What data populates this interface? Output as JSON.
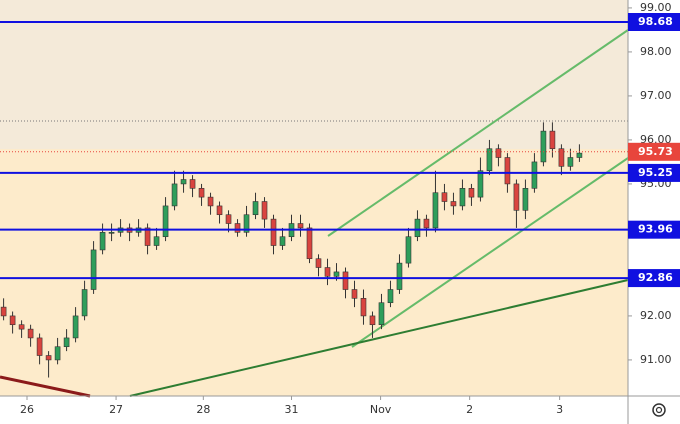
{
  "chart_data": {
    "type": "candlestick",
    "open": [
      92.2,
      92.0,
      91.8,
      91.7,
      91.5,
      91.1,
      91.0,
      91.3,
      91.5,
      92.0,
      92.6,
      93.5,
      93.9,
      93.9,
      94.0,
      93.9,
      94.0,
      93.6,
      93.8,
      94.5,
      95.0,
      95.1,
      94.9,
      94.7,
      94.5,
      94.3,
      94.1,
      93.9,
      94.3,
      94.6,
      94.2,
      93.6,
      93.8,
      94.1,
      94.0,
      93.3,
      93.1,
      92.9,
      93.0,
      92.6,
      92.4,
      92.0,
      91.8,
      92.3,
      92.6,
      93.2,
      93.8,
      94.2,
      94.0,
      94.8,
      94.6,
      94.5,
      94.9,
      94.7,
      95.3,
      95.8,
      95.6,
      95.0,
      94.4,
      94.9,
      95.5,
      96.2,
      95.8,
      95.4,
      95.6
    ],
    "high": [
      92.4,
      92.1,
      91.9,
      91.8,
      91.6,
      91.2,
      91.5,
      91.7,
      92.2,
      92.8,
      93.7,
      94.1,
      94.1,
      94.2,
      94.1,
      94.2,
      94.1,
      94.0,
      94.7,
      95.3,
      95.3,
      95.2,
      95.0,
      94.8,
      94.6,
      94.4,
      94.2,
      94.5,
      94.8,
      94.7,
      94.3,
      94.0,
      94.3,
      94.3,
      94.1,
      93.4,
      93.3,
      93.2,
      93.1,
      92.8,
      92.6,
      92.1,
      92.5,
      92.8,
      93.4,
      94.0,
      94.4,
      94.3,
      95.3,
      95.0,
      94.8,
      95.1,
      95.0,
      95.6,
      96.0,
      95.9,
      95.7,
      95.1,
      95.1,
      95.7,
      96.4,
      96.4,
      95.9,
      95.8,
      95.9
    ],
    "low": [
      91.9,
      91.6,
      91.5,
      91.3,
      90.9,
      90.6,
      90.9,
      91.2,
      91.4,
      91.9,
      92.5,
      93.4,
      93.7,
      93.8,
      93.7,
      93.8,
      93.4,
      93.5,
      93.7,
      94.4,
      94.8,
      94.7,
      94.5,
      94.3,
      94.1,
      93.9,
      93.8,
      93.8,
      94.2,
      94.0,
      93.4,
      93.5,
      93.7,
      93.8,
      93.2,
      92.9,
      92.7,
      92.8,
      92.4,
      92.2,
      91.8,
      91.5,
      91.7,
      92.2,
      92.5,
      93.1,
      93.7,
      93.8,
      93.9,
      94.4,
      94.3,
      94.4,
      94.5,
      94.6,
      95.2,
      95.4,
      94.8,
      94.0,
      94.2,
      94.8,
      95.4,
      95.6,
      95.2,
      95.3,
      95.5
    ],
    "close": [
      92.0,
      91.8,
      91.7,
      91.5,
      91.1,
      91.0,
      91.3,
      91.5,
      92.0,
      92.6,
      93.5,
      93.9,
      93.9,
      94.0,
      93.9,
      94.0,
      93.6,
      93.8,
      94.5,
      95.0,
      95.1,
      94.9,
      94.7,
      94.5,
      94.3,
      94.1,
      93.9,
      94.3,
      94.6,
      94.2,
      93.6,
      93.8,
      94.1,
      94.0,
      93.3,
      93.1,
      92.9,
      93.0,
      92.6,
      92.4,
      92.0,
      91.8,
      92.3,
      92.6,
      93.2,
      93.8,
      94.2,
      94.0,
      94.8,
      94.6,
      94.5,
      94.9,
      94.7,
      95.3,
      95.8,
      95.6,
      95.0,
      94.4,
      94.9,
      95.5,
      96.2,
      95.8,
      95.4,
      95.6,
      95.7
    ],
    "up_color": "#2e9e5b",
    "down_color": "#d9443f",
    "xlim": [
      -0.4,
      69.4
    ],
    "xticks": [
      {
        "value": 2.6,
        "label": "26"
      },
      {
        "value": 12.5,
        "label": "27"
      },
      {
        "value": 22.2,
        "label": "28"
      },
      {
        "value": 32.0,
        "label": "31"
      },
      {
        "value": 41.9,
        "label": "Nov"
      },
      {
        "value": 51.8,
        "label": "2"
      },
      {
        "value": 61.8,
        "label": "3"
      }
    ],
    "ylim": [
      90.18,
      99.18
    ],
    "yticks": [
      {
        "value": 99,
        "label": "99.00"
      },
      {
        "value": 98,
        "label": "98.00"
      },
      {
        "value": 97,
        "label": "97.00"
      },
      {
        "value": 96,
        "label": "96.00"
      },
      {
        "value": 95,
        "label": "95.00"
      },
      {
        "value": 92,
        "label": "92.00"
      },
      {
        "value": 91,
        "label": "91.00"
      }
    ],
    "levels": [
      98.68,
      95.25,
      93.96,
      92.86
    ],
    "level_color": "#1010e0",
    "last_price": 95.73,
    "last_price_color": "#e8453c"
  }
}
